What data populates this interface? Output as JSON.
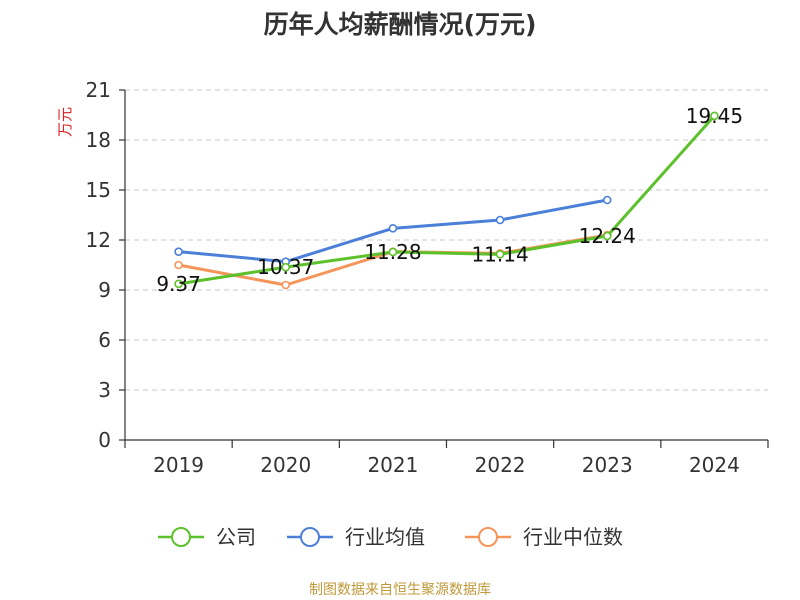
{
  "chart_data": {
    "type": "line",
    "title": "历年人均薪酬情况(万元)",
    "ylabel": "万元",
    "xlabel": "",
    "categories": [
      "2019",
      "2020",
      "2021",
      "2022",
      "2023",
      "2024"
    ],
    "ylim": [
      0,
      21
    ],
    "yticks": [
      "0",
      "3",
      "6",
      "9",
      "12",
      "15",
      "18",
      "21"
    ],
    "grid": true,
    "legend_position": "bottom",
    "series": [
      {
        "name": "公司",
        "color": "#5cc12b",
        "values": [
          9.37,
          10.37,
          11.28,
          11.14,
          12.24,
          19.45
        ],
        "labels": [
          "9.37",
          "10.37",
          "11.28",
          "11.14",
          "12.24",
          "19.45"
        ]
      },
      {
        "name": "行业均值",
        "color": "#4b7fd8",
        "values": [
          11.3,
          10.7,
          12.7,
          13.2,
          14.4,
          null
        ]
      },
      {
        "name": "行业中位数",
        "color": "#f5955a",
        "values": [
          10.5,
          9.3,
          11.3,
          11.2,
          12.3,
          null
        ]
      }
    ]
  },
  "footer": {
    "source": "制图数据来自恒生聚源数据库"
  }
}
